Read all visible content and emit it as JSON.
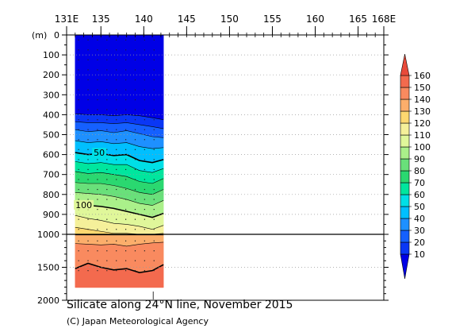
{
  "chart_data": {
    "type": "heatmap",
    "title": "Silicate along 24°N line, November 2015",
    "credit": "(C) Japan Meteorological Agency",
    "x_tick_labels": [
      "131E",
      "135",
      "140",
      "145",
      "150",
      "155",
      "160",
      "165",
      "168E"
    ],
    "x_tick_values": [
      131,
      135,
      140,
      145,
      150,
      155,
      160,
      165,
      168
    ],
    "xlim": [
      131,
      168
    ],
    "y_unit_label": "(m)",
    "y_tick_labels_upper": [
      "0",
      "100",
      "200",
      "300",
      "400",
      "500",
      "600",
      "700",
      "800",
      "900",
      "1000"
    ],
    "y_tick_labels_lower": [
      "1500",
      "2000"
    ],
    "y_upper_range": [
      0,
      1000
    ],
    "y_lower_range": [
      1000,
      2000
    ],
    "data_lon_range": [
      132,
      142.3
    ],
    "contour_labels": [
      {
        "text": "50",
        "lon": 134.8,
        "depth": 590
      },
      {
        "text": "100",
        "lon": 133.0,
        "depth": 852
      }
    ],
    "colorbar": {
      "levels": [
        10,
        20,
        30,
        40,
        50,
        60,
        70,
        80,
        90,
        100,
        110,
        120,
        130,
        140,
        150,
        160
      ],
      "labels": [
        "10",
        "20",
        "30",
        "40",
        "50",
        "60",
        "70",
        "80",
        "90",
        "100",
        "110",
        "120",
        "130",
        "140",
        "150",
        "160"
      ],
      "colors": [
        "#0000e6",
        "#0a37f5",
        "#1560ff",
        "#1e90ff",
        "#00bfff",
        "#00dfe6",
        "#00e69e",
        "#2ad870",
        "#69e07a",
        "#aaf08a",
        "#e0f79a",
        "#f5f09a",
        "#fdd870",
        "#fcae6b",
        "#f98a5f",
        "#f36a4e",
        "#e84a3a"
      ]
    },
    "profiles_upper": {
      "lons": [
        132,
        133.5,
        135,
        136.5,
        138,
        139.5,
        141,
        142.3
      ],
      "isolines": [
        {
          "value": 10,
          "depths": [
            395,
            400,
            400,
            405,
            400,
            405,
            415,
            425
          ]
        },
        {
          "value": 20,
          "depths": [
            435,
            440,
            440,
            445,
            440,
            450,
            460,
            470
          ]
        },
        {
          "value": 30,
          "depths": [
            475,
            485,
            480,
            490,
            480,
            495,
            510,
            515
          ]
        },
        {
          "value": 40,
          "depths": [
            530,
            540,
            535,
            545,
            540,
            560,
            570,
            565
          ]
        },
        {
          "value": 50,
          "depths": [
            590,
            600,
            595,
            605,
            600,
            630,
            640,
            625
          ]
        },
        {
          "value": 60,
          "depths": [
            635,
            645,
            640,
            650,
            650,
            680,
            690,
            670
          ]
        },
        {
          "value": 70,
          "depths": [
            685,
            695,
            690,
            700,
            710,
            735,
            745,
            720
          ]
        },
        {
          "value": 80,
          "depths": [
            740,
            745,
            745,
            755,
            770,
            790,
            800,
            775
          ]
        },
        {
          "value": 90,
          "depths": [
            790,
            795,
            800,
            810,
            825,
            845,
            855,
            830
          ]
        },
        {
          "value": 100,
          "depths": [
            845,
            855,
            860,
            870,
            885,
            900,
            915,
            895
          ]
        },
        {
          "value": 110,
          "depths": [
            905,
            920,
            930,
            945,
            950,
            960,
            975,
            955
          ]
        },
        {
          "value": 120,
          "depths": [
            965,
            975,
            985,
            995,
            995,
            1000,
            1000,
            995
          ]
        }
      ]
    },
    "profiles_lower": {
      "lons": [
        132,
        133.5,
        135,
        136.5,
        138,
        139.5,
        141,
        142.3
      ],
      "isolines": [
        {
          "value": 130,
          "depths": [
            1010,
            1010,
            1010,
            1010,
            1010,
            1010,
            1010,
            1010
          ]
        },
        {
          "value": 140,
          "depths": [
            1140,
            1150,
            1160,
            1150,
            1180,
            1150,
            1130,
            1120
          ]
        },
        {
          "value": 150,
          "depths": [
            1520,
            1440,
            1500,
            1540,
            1520,
            1580,
            1550,
            1460
          ]
        }
      ]
    }
  }
}
